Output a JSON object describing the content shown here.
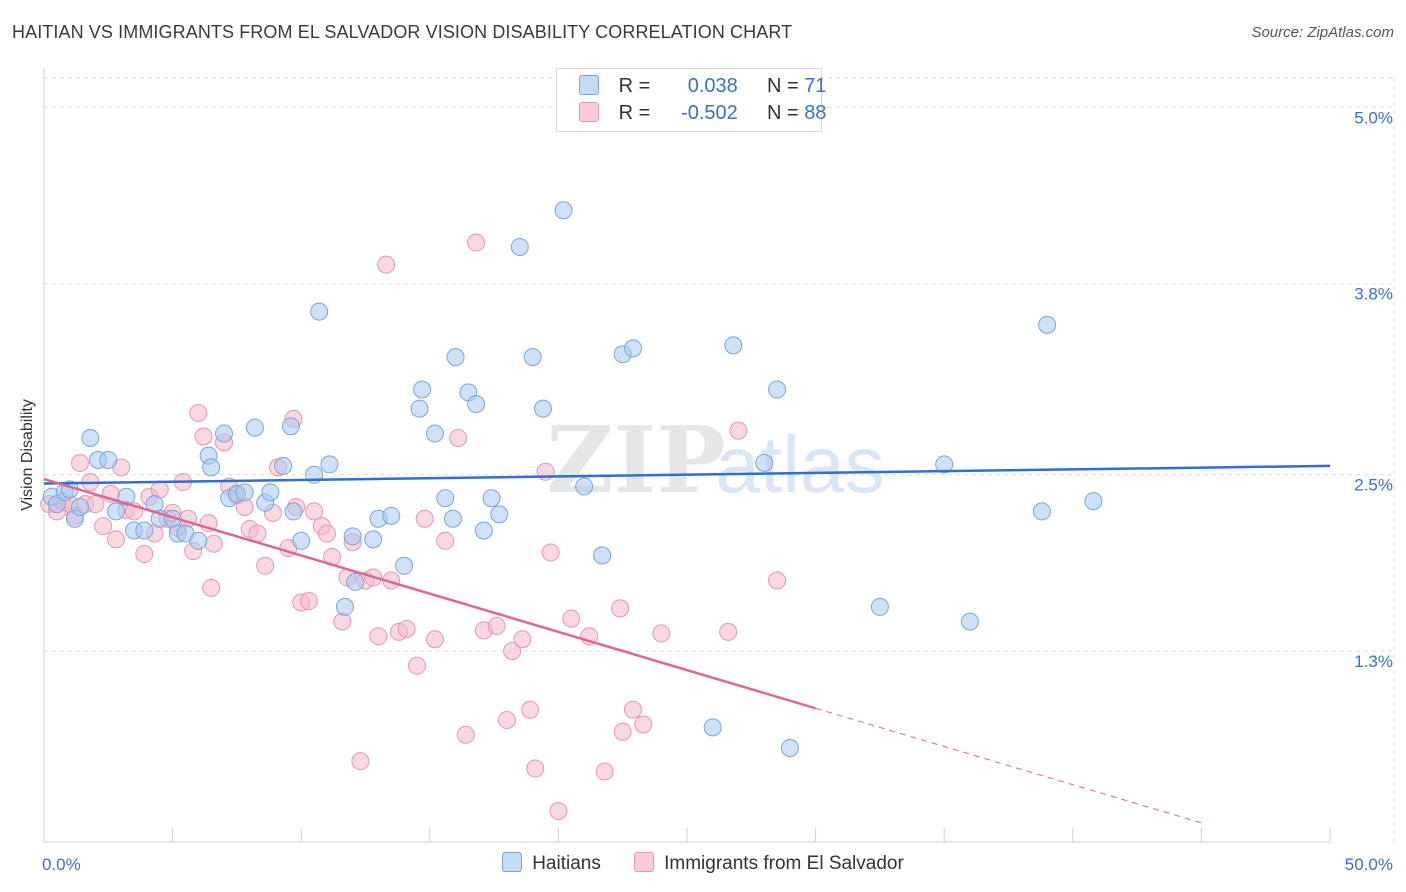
{
  "header": {
    "title": "HAITIAN VS IMMIGRANTS FROM EL SALVADOR VISION DISABILITY CORRELATION CHART",
    "source": "Source: ZipAtlas.com"
  },
  "watermark": {
    "zip": "ZIP",
    "atlas": "atlas"
  },
  "legend": {
    "rows": [
      {
        "r_label": "R =",
        "r_value": "0.038",
        "n_label": "N =",
        "n_value": "71",
        "color": "#a8c8f0"
      },
      {
        "r_label": "R =",
        "r_value": "-0.502",
        "n_label": "N =",
        "n_value": "88",
        "color": "#f5b8cb"
      }
    ]
  },
  "bottom_legend": [
    {
      "label": "Haitians",
      "color": "#a8c8f0"
    },
    {
      "label": "Immigrants from El Salvador",
      "color": "#f5b8cb"
    }
  ],
  "colors": {
    "blue_fill": "#a8c8f0",
    "blue_stroke": "#7aa5dc",
    "blue_line": "#2f6fcf",
    "pink_fill": "#f5b8cb",
    "pink_stroke": "#e896b0",
    "pink_line": "#e0668f",
    "grid": "#dcdcdc",
    "tick_label": "#3b6fd0"
  },
  "chart_data": {
    "type": "scatter",
    "title": "HAITIAN VS IMMIGRANTS FROM EL SALVADOR VISION DISABILITY CORRELATION CHART",
    "xlabel": "",
    "ylabel": "Vision Disability",
    "xlim": [
      0,
      50
    ],
    "ylim": [
      0,
      5.2
    ],
    "x_tick_labels": [
      "0.0%",
      "50.0%"
    ],
    "y_ticks": [
      1.3,
      2.5,
      3.8,
      5.0
    ],
    "y_tick_labels": [
      "1.3%",
      "2.5%",
      "3.8%",
      "5.0%"
    ],
    "grid": true,
    "legend_position": "top-center",
    "series": [
      {
        "name": "Haitians",
        "color": "#a8c8f0",
        "trend": {
          "x0": 0,
          "y0": 2.44,
          "x1": 50,
          "y1": 2.56
        },
        "points": [
          [
            0.3,
            2.35
          ],
          [
            0.5,
            2.3
          ],
          [
            0.8,
            2.38
          ],
          [
            1.0,
            2.4
          ],
          [
            1.2,
            2.2
          ],
          [
            1.4,
            2.28
          ],
          [
            1.8,
            2.75
          ],
          [
            2.1,
            2.6
          ],
          [
            2.5,
            2.6
          ],
          [
            2.8,
            2.25
          ],
          [
            3.2,
            2.35
          ],
          [
            3.5,
            2.12
          ],
          [
            3.9,
            2.12
          ],
          [
            4.3,
            2.3
          ],
          [
            4.5,
            2.2
          ],
          [
            5.0,
            2.2
          ],
          [
            5.2,
            2.1
          ],
          [
            5.5,
            2.1
          ],
          [
            6.0,
            2.05
          ],
          [
            6.4,
            2.63
          ],
          [
            6.5,
            2.55
          ],
          [
            7.0,
            2.78
          ],
          [
            7.2,
            2.34
          ],
          [
            7.5,
            2.37
          ],
          [
            7.8,
            2.38
          ],
          [
            8.2,
            2.82
          ],
          [
            8.6,
            2.31
          ],
          [
            8.8,
            2.38
          ],
          [
            9.3,
            2.56
          ],
          [
            9.6,
            2.83
          ],
          [
            9.7,
            2.25
          ],
          [
            10.0,
            2.05
          ],
          [
            10.5,
            2.5
          ],
          [
            10.7,
            3.61
          ],
          [
            11.1,
            2.57
          ],
          [
            11.7,
            1.6
          ],
          [
            12.0,
            2.08
          ],
          [
            12.1,
            1.77
          ],
          [
            12.8,
            2.06
          ],
          [
            13.0,
            2.2
          ],
          [
            13.5,
            2.22
          ],
          [
            14.0,
            1.88
          ],
          [
            14.6,
            2.95
          ],
          [
            14.7,
            3.08
          ],
          [
            15.2,
            2.78
          ],
          [
            15.6,
            2.34
          ],
          [
            15.9,
            2.2
          ],
          [
            16.0,
            3.3
          ],
          [
            16.5,
            3.06
          ],
          [
            16.8,
            2.98
          ],
          [
            17.1,
            2.12
          ],
          [
            17.4,
            2.34
          ],
          [
            17.7,
            2.23
          ],
          [
            18.5,
            4.05
          ],
          [
            19.0,
            3.3
          ],
          [
            19.4,
            2.95
          ],
          [
            20.2,
            4.3
          ],
          [
            21.0,
            2.42
          ],
          [
            21.7,
            1.95
          ],
          [
            22.5,
            3.32
          ],
          [
            22.9,
            3.36
          ],
          [
            26.0,
            0.78
          ],
          [
            26.8,
            3.38
          ],
          [
            28.0,
            2.58
          ],
          [
            28.5,
            3.08
          ],
          [
            29.0,
            0.64
          ],
          [
            32.5,
            1.6
          ],
          [
            35.0,
            2.57
          ],
          [
            36.0,
            1.5
          ],
          [
            38.8,
            2.25
          ],
          [
            39.0,
            3.52
          ],
          [
            40.8,
            2.32
          ]
        ]
      },
      {
        "name": "Immigrants from El Salvador",
        "color": "#f5b8cb",
        "trend": {
          "x0": 0,
          "y0": 2.47,
          "x1": 30,
          "y1": 0.91,
          "dash_x1": 45,
          "dash_y1": 0.13
        },
        "points": [
          [
            0.2,
            2.3
          ],
          [
            0.5,
            2.25
          ],
          [
            0.7,
            2.32
          ],
          [
            1.0,
            2.3
          ],
          [
            1.2,
            2.22
          ],
          [
            1.4,
            2.58
          ],
          [
            1.6,
            2.3
          ],
          [
            1.8,
            2.45
          ],
          [
            2.0,
            2.3
          ],
          [
            2.3,
            2.15
          ],
          [
            2.6,
            2.37
          ],
          [
            2.8,
            2.06
          ],
          [
            3.0,
            2.55
          ],
          [
            3.2,
            2.26
          ],
          [
            3.5,
            2.25
          ],
          [
            3.9,
            1.96
          ],
          [
            4.1,
            2.35
          ],
          [
            4.3,
            2.1
          ],
          [
            4.5,
            2.4
          ],
          [
            4.8,
            2.2
          ],
          [
            5.0,
            2.24
          ],
          [
            5.2,
            2.14
          ],
          [
            5.4,
            2.45
          ],
          [
            5.6,
            2.2
          ],
          [
            5.8,
            1.98
          ],
          [
            6.0,
            2.92
          ],
          [
            6.2,
            2.76
          ],
          [
            6.4,
            2.17
          ],
          [
            6.5,
            1.73
          ],
          [
            6.6,
            2.03
          ],
          [
            7.0,
            2.72
          ],
          [
            7.2,
            2.42
          ],
          [
            7.5,
            2.36
          ],
          [
            7.8,
            2.28
          ],
          [
            8.0,
            2.13
          ],
          [
            8.3,
            2.1
          ],
          [
            8.6,
            1.88
          ],
          [
            8.9,
            2.24
          ],
          [
            9.1,
            2.55
          ],
          [
            9.5,
            2.0
          ],
          [
            9.7,
            2.88
          ],
          [
            9.8,
            2.28
          ],
          [
            10.0,
            1.63
          ],
          [
            10.3,
            1.64
          ],
          [
            10.5,
            2.25
          ],
          [
            10.8,
            2.15
          ],
          [
            11.0,
            2.1
          ],
          [
            11.2,
            1.94
          ],
          [
            11.6,
            1.5
          ],
          [
            11.8,
            1.8
          ],
          [
            12.0,
            2.04
          ],
          [
            12.3,
            0.55
          ],
          [
            12.5,
            1.78
          ],
          [
            12.8,
            1.8
          ],
          [
            13.0,
            1.4
          ],
          [
            13.3,
            3.93
          ],
          [
            13.5,
            1.78
          ],
          [
            13.8,
            1.43
          ],
          [
            14.1,
            1.45
          ],
          [
            14.5,
            1.2
          ],
          [
            14.8,
            2.2
          ],
          [
            15.2,
            1.38
          ],
          [
            15.6,
            2.05
          ],
          [
            16.1,
            2.75
          ],
          [
            16.4,
            0.73
          ],
          [
            16.8,
            4.08
          ],
          [
            17.1,
            1.44
          ],
          [
            17.6,
            1.47
          ],
          [
            18.0,
            0.83
          ],
          [
            18.2,
            1.3
          ],
          [
            18.6,
            1.38
          ],
          [
            18.9,
            0.9
          ],
          [
            19.1,
            0.5
          ],
          [
            19.5,
            2.52
          ],
          [
            19.7,
            1.97
          ],
          [
            20.0,
            0.21
          ],
          [
            20.5,
            1.52
          ],
          [
            21.2,
            1.4
          ],
          [
            21.8,
            0.48
          ],
          [
            22.4,
            1.59
          ],
          [
            22.5,
            0.75
          ],
          [
            22.9,
            0.9
          ],
          [
            23.3,
            0.8
          ],
          [
            24.0,
            1.42
          ],
          [
            26.6,
            1.43
          ],
          [
            27.0,
            2.8
          ],
          [
            28.5,
            1.78
          ]
        ]
      }
    ]
  }
}
